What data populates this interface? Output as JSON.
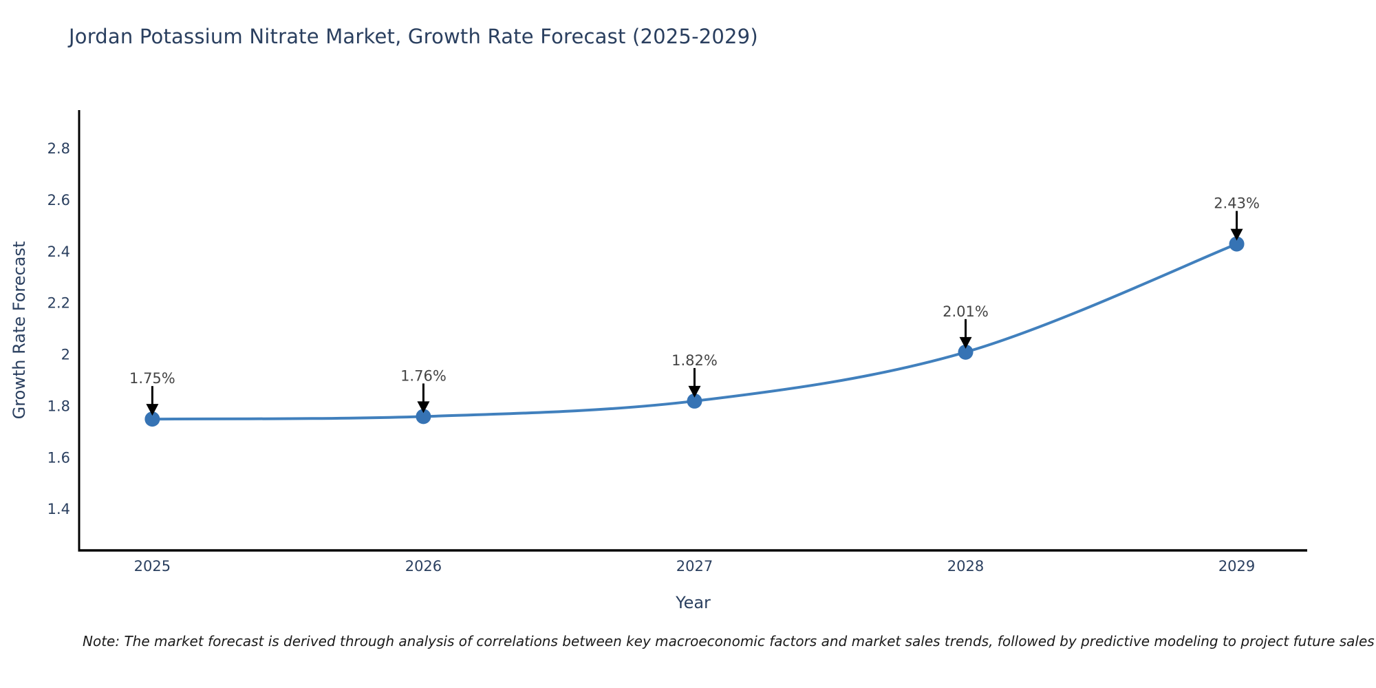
{
  "title": "Jordan Potassium Nitrate Market, Growth Rate Forecast (2025-2029)",
  "note": "Note: The market forecast is derived through analysis of correlations between key macroeconomic factors and market sales trends, followed by predictive modeling to project future sales",
  "colors": {
    "title": "#2a3f5f",
    "tick_label": "#2a3f5f",
    "axis_title": "#2a3f5f",
    "annotation_text": "#444444",
    "annotation_arrow": "#000000",
    "axis_line": "#000000",
    "line": "#4180bd",
    "marker": "#3673b4",
    "note_text": "#1a1a1a"
  },
  "chart_data": {
    "type": "line",
    "title": "Jordan Potassium Nitrate Market, Growth Rate Forecast (2025-2029)",
    "xlabel": "Year",
    "ylabel": "Growth Rate Forecast",
    "x": [
      2025,
      2026,
      2027,
      2028,
      2029
    ],
    "values": [
      1.75,
      1.76,
      1.82,
      2.01,
      2.43
    ],
    "point_labels": [
      "1.75%",
      "1.76%",
      "1.82%",
      "2.01%",
      "2.43%"
    ],
    "xtick_labels": [
      "2025",
      "2026",
      "2027",
      "2028",
      "2029"
    ],
    "yticks": [
      1.4,
      1.6,
      1.8,
      2.0,
      2.2,
      2.4,
      2.6,
      2.8
    ],
    "ytick_labels": [
      "1.4",
      "1.6",
      "1.8",
      "2",
      "2.2",
      "2.4",
      "2.6",
      "2.8"
    ],
    "xlim": [
      2024.73,
      2029.26
    ],
    "ylim": [
      1.24,
      2.95
    ],
    "grid": false,
    "legend": "none",
    "line_shape": "spline",
    "marker_style": "circle-with-down-arrow-annotation"
  }
}
